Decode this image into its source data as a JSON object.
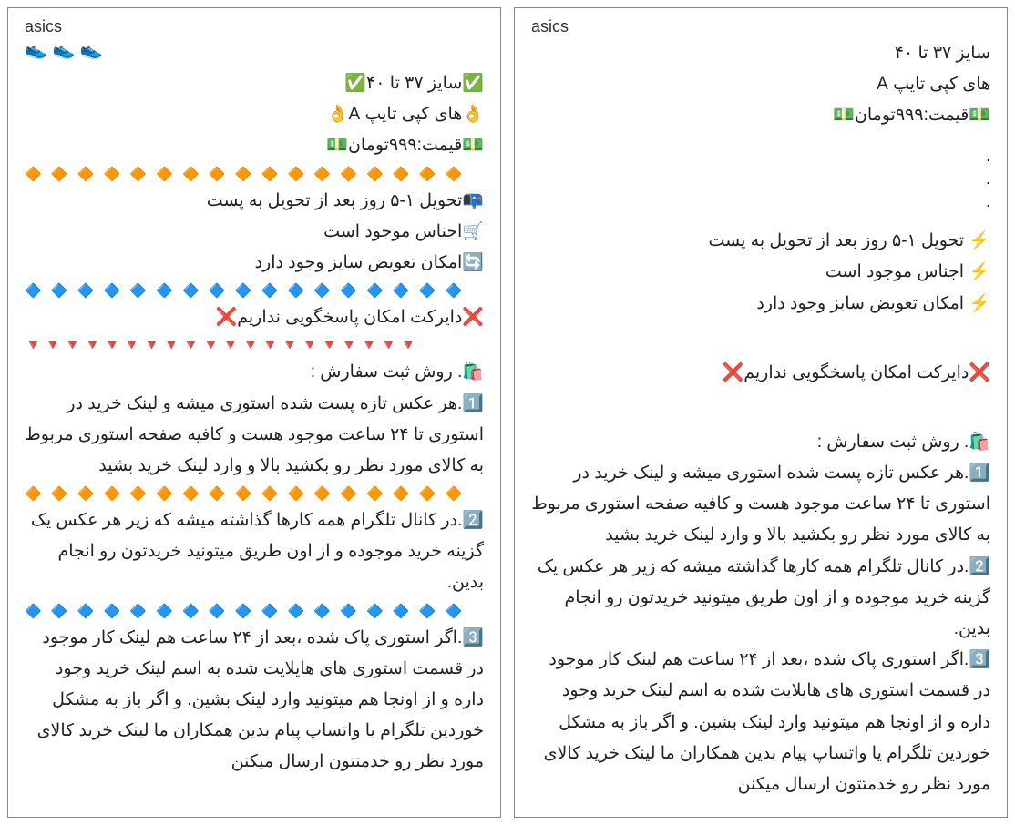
{
  "left": {
    "brand": "asics",
    "shoes": "👟 👟 👟",
    "size_line": "✅سایز ۳۷ تا ۴۰✅",
    "type_line": "👌های کپی تایپ A👌",
    "price_line": "💵قیمت:۹۹۹تومان💵",
    "div_orange": "🔶 🔶 🔶 🔶 🔶 🔶 🔶 🔶 🔶 🔶 🔶 🔶 🔶 🔶 🔶 🔶 🔶",
    "bullet1": "📭تحویل ۱-۵ روز بعد از تحویل به پست",
    "bullet2": "🛒اجناس موجود است",
    "bullet3": "🔄امکان تعویض سایز وجود دارد",
    "div_blue": "🔷 🔷 🔷 🔷 🔷 🔷 🔷 🔷 🔷 🔷 🔷 🔷 🔷 🔷 🔷 🔷 🔷",
    "no_direct": "❌دایرکت امکان پاسخگویی نداریم❌",
    "div_red": "🔻🔻🔻🔻🔻🔻🔻🔻🔻🔻🔻🔻🔻🔻🔻🔻🔻🔻🔻🔻",
    "order_title": "🛍️. روش ثبت سفارش :",
    "step1": "1️⃣.هر عکس تازه پست شده استوری میشه و لینک خرید در استوری تا ۲۴ ساعت موجود هست و کافیه صفحه استوری مربوط به کالای مورد نظر رو بکشید بالا و وارد لینک خرید بشید",
    "step2": "2️⃣.در کانال تلگرام همه کارها گذاشته میشه که زیر هر عکس یک گزینه خرید موجوده و از اون طریق میتونید خریدتون رو انجام بدین.",
    "step3": "3️⃣.اگر استوری پاک شده ،بعد از ۲۴ ساعت هم لینک کار موجود در قسمت استوری های هایلایت شده به اسم لینک خرید وجود داره و از اونجا هم میتونید وارد لینک بشین. و اگر باز به مشکل خوردین تلگرام یا واتساپ پیام بدین همکاران ما لینک خرید کالای مورد نظر رو خدمتتون ارسال میکنن"
  },
  "right": {
    "brand": "asics",
    "size_line": "سایز ۳۷ تا ۴۰",
    "type_line": "های کپی تایپ A",
    "price_line": "💵قیمت:۹۹۹تومان💵",
    "dot": ".",
    "bullet1": "⚡ تحویل ۱-۵ روز بعد از تحویل به پست",
    "bullet2": "⚡ اجناس موجود است",
    "bullet3": "⚡ امکان تعویض سایز وجود دارد",
    "no_direct": "❌دایرکت امکان پاسخگویی نداریم❌",
    "order_title": "🛍️. روش ثبت سفارش :",
    "step1": "1️⃣.هر عکس تازه پست شده استوری میشه و لینک خرید در استوری تا ۲۴ ساعت موجود هست و کافیه صفحه استوری مربوط به کالای مورد نظر رو بکشید بالا و وارد لینک خرید بشید",
    "step2": "2️⃣.در کانال تلگرام همه کارها گذاشته میشه که زیر هر عکس یک گزینه خرید موجوده و از اون طریق میتونید خریدتون رو انجام بدین.",
    "step3": "3️⃣.اگر استوری پاک شده ،بعد از ۲۴ ساعت هم لینک کار موجود در قسمت استوری های هایلایت شده به اسم لینک خرید وجود داره و از اونجا هم میتونید وارد لینک بشین. و اگر باز به مشکل خوردین تلگرام یا  واتساپ پیام بدین همکاران ما لینک خرید کالای مورد نظر رو خدمتتون ارسال میکنن"
  }
}
